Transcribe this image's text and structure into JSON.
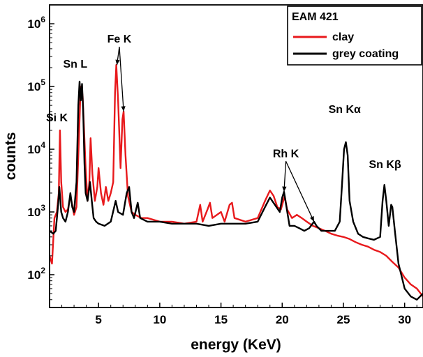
{
  "chart_data": {
    "type": "line",
    "xlabel": "energy (KeV)",
    "ylabel": "counts",
    "xlim": [
      1.0,
      31.5
    ],
    "ylim": [
      30,
      2000000
    ],
    "yscale": "log",
    "x_ticks": [
      5,
      10,
      15,
      20,
      25,
      30
    ],
    "y_ticks": [
      {
        "value": 100,
        "base": "10",
        "exp": "2"
      },
      {
        "value": 1000,
        "base": "10",
        "exp": "3"
      },
      {
        "value": 10000,
        "base": "10",
        "exp": "4"
      },
      {
        "value": 100000,
        "base": "10",
        "exp": "5"
      },
      {
        "value": 1000000,
        "base": "10",
        "exp": "6"
      }
    ],
    "grid": false,
    "legend": {
      "title": "EAM 421",
      "placement": "top-right"
    },
    "series": [
      {
        "name": "clay",
        "color": "#e8191c",
        "points": [
          [
            1.0,
            200
          ],
          [
            1.2,
            150
          ],
          [
            1.4,
            800
          ],
          [
            1.6,
            1000
          ],
          [
            1.75,
            2000
          ],
          [
            1.85,
            20000
          ],
          [
            1.95,
            3000
          ],
          [
            2.1,
            1200
          ],
          [
            2.3,
            1000
          ],
          [
            2.5,
            1100
          ],
          [
            2.7,
            1800
          ],
          [
            2.85,
            1300
          ],
          [
            3.0,
            900
          ],
          [
            3.2,
            1200
          ],
          [
            3.4,
            15000
          ],
          [
            3.5,
            60000
          ],
          [
            3.6,
            100000
          ],
          [
            3.7,
            70000
          ],
          [
            3.8,
            25000
          ],
          [
            3.95,
            5000
          ],
          [
            4.1,
            1500
          ],
          [
            4.25,
            3000
          ],
          [
            4.35,
            15000
          ],
          [
            4.5,
            4000
          ],
          [
            4.7,
            1500
          ],
          [
            4.9,
            2500
          ],
          [
            5.0,
            5000
          ],
          [
            5.2,
            2000
          ],
          [
            5.4,
            1300
          ],
          [
            5.6,
            2500
          ],
          [
            5.8,
            1500
          ],
          [
            6.0,
            2000
          ],
          [
            6.2,
            3000
          ],
          [
            6.35,
            80000
          ],
          [
            6.45,
            220000
          ],
          [
            6.6,
            60000
          ],
          [
            6.8,
            5000
          ],
          [
            6.95,
            30000
          ],
          [
            7.05,
            40000
          ],
          [
            7.2,
            8000
          ],
          [
            7.4,
            1800
          ],
          [
            7.7,
            1000
          ],
          [
            8.0,
            900
          ],
          [
            8.5,
            800
          ],
          [
            9.0,
            800
          ],
          [
            10.0,
            700
          ],
          [
            11.0,
            700
          ],
          [
            12.0,
            650
          ],
          [
            13.0,
            700
          ],
          [
            13.3,
            1300
          ],
          [
            13.5,
            700
          ],
          [
            13.9,
            1100
          ],
          [
            14.1,
            1400
          ],
          [
            14.3,
            800
          ],
          [
            15.0,
            1000
          ],
          [
            15.3,
            700
          ],
          [
            15.7,
            1300
          ],
          [
            15.9,
            1400
          ],
          [
            16.1,
            800
          ],
          [
            17.0,
            700
          ],
          [
            18.0,
            800
          ],
          [
            18.6,
            1500
          ],
          [
            19.0,
            2200
          ],
          [
            19.3,
            1800
          ],
          [
            19.6,
            1200
          ],
          [
            19.9,
            1100
          ],
          [
            20.2,
            1800
          ],
          [
            20.4,
            1100
          ],
          [
            20.8,
            800
          ],
          [
            21.2,
            900
          ],
          [
            21.6,
            800
          ],
          [
            22.0,
            700
          ],
          [
            22.5,
            600
          ],
          [
            23.0,
            550
          ],
          [
            23.5,
            500
          ],
          [
            24.0,
            450
          ],
          [
            24.5,
            420
          ],
          [
            25.0,
            400
          ],
          [
            25.5,
            370
          ],
          [
            26.0,
            330
          ],
          [
            26.5,
            300
          ],
          [
            27.0,
            280
          ],
          [
            27.5,
            250
          ],
          [
            28.0,
            230
          ],
          [
            28.5,
            200
          ],
          [
            29.0,
            160
          ],
          [
            29.5,
            130
          ],
          [
            30.0,
            90
          ],
          [
            30.5,
            70
          ],
          [
            31.0,
            60
          ],
          [
            31.5,
            45
          ]
        ]
      },
      {
        "name": "grey coating",
        "color": "#000000",
        "points": [
          [
            1.0,
            500
          ],
          [
            1.3,
            450
          ],
          [
            1.5,
            500
          ],
          [
            1.7,
            1300
          ],
          [
            1.8,
            2500
          ],
          [
            1.95,
            1000
          ],
          [
            2.1,
            800
          ],
          [
            2.3,
            700
          ],
          [
            2.5,
            1000
          ],
          [
            2.7,
            2000
          ],
          [
            2.85,
            1200
          ],
          [
            3.0,
            1000
          ],
          [
            3.2,
            3000
          ],
          [
            3.35,
            50000
          ],
          [
            3.45,
            120000
          ],
          [
            3.55,
            60000
          ],
          [
            3.65,
            110000
          ],
          [
            3.75,
            40000
          ],
          [
            3.85,
            6000
          ],
          [
            3.95,
            2000
          ],
          [
            4.1,
            1500
          ],
          [
            4.3,
            3000
          ],
          [
            4.45,
            1500
          ],
          [
            4.6,
            800
          ],
          [
            4.8,
            700
          ],
          [
            5.0,
            650
          ],
          [
            5.5,
            600
          ],
          [
            6.0,
            700
          ],
          [
            6.4,
            1500
          ],
          [
            6.6,
            1000
          ],
          [
            7.0,
            900
          ],
          [
            7.3,
            2000
          ],
          [
            7.5,
            2500
          ],
          [
            7.7,
            1000
          ],
          [
            7.9,
            800
          ],
          [
            8.2,
            1400
          ],
          [
            8.4,
            800
          ],
          [
            9.0,
            700
          ],
          [
            10.0,
            700
          ],
          [
            11.0,
            650
          ],
          [
            12.0,
            650
          ],
          [
            13.0,
            650
          ],
          [
            14.0,
            600
          ],
          [
            15.0,
            650
          ],
          [
            16.0,
            650
          ],
          [
            17.0,
            650
          ],
          [
            18.0,
            700
          ],
          [
            18.6,
            1200
          ],
          [
            19.0,
            1700
          ],
          [
            19.4,
            1300
          ],
          [
            19.8,
            1000
          ],
          [
            20.0,
            1700
          ],
          [
            20.15,
            2100
          ],
          [
            20.35,
            1200
          ],
          [
            20.6,
            600
          ],
          [
            21.0,
            600
          ],
          [
            21.4,
            550
          ],
          [
            21.8,
            500
          ],
          [
            22.2,
            550
          ],
          [
            22.6,
            700
          ],
          [
            22.8,
            600
          ],
          [
            23.2,
            500
          ],
          [
            23.8,
            500
          ],
          [
            24.3,
            500
          ],
          [
            24.7,
            700
          ],
          [
            24.9,
            3000
          ],
          [
            25.05,
            10000
          ],
          [
            25.2,
            13000
          ],
          [
            25.35,
            8000
          ],
          [
            25.5,
            1500
          ],
          [
            25.8,
            700
          ],
          [
            26.2,
            450
          ],
          [
            26.6,
            400
          ],
          [
            27.0,
            380
          ],
          [
            27.5,
            360
          ],
          [
            28.0,
            400
          ],
          [
            28.2,
            1500
          ],
          [
            28.35,
            2700
          ],
          [
            28.5,
            1500
          ],
          [
            28.7,
            600
          ],
          [
            28.9,
            1300
          ],
          [
            29.0,
            1200
          ],
          [
            29.2,
            500
          ],
          [
            29.5,
            150
          ],
          [
            30.0,
            60
          ],
          [
            30.5,
            45
          ],
          [
            31.0,
            40
          ],
          [
            31.5,
            50
          ]
        ]
      }
    ],
    "annotations": [
      {
        "label": "Fe K",
        "x": 6.7,
        "y": 500000,
        "arrows": [
          [
            6.5,
            220000
          ],
          [
            7.05,
            40000
          ]
        ]
      },
      {
        "label": "Sn L",
        "x": 3.1,
        "y": 200000,
        "arrows": []
      },
      {
        "label": "Si K",
        "x": 1.6,
        "y": 28000,
        "arrows": []
      },
      {
        "label": "Rh K",
        "x": 20.3,
        "y": 7500,
        "arrows": [
          [
            20.15,
            2100
          ],
          [
            22.6,
            700
          ]
        ]
      },
      {
        "label": "Sn Kα",
        "x": 25.1,
        "y": 38000,
        "arrows": []
      },
      {
        "label": "Sn Kβ",
        "x": 28.4,
        "y": 5000,
        "arrows": []
      }
    ]
  }
}
